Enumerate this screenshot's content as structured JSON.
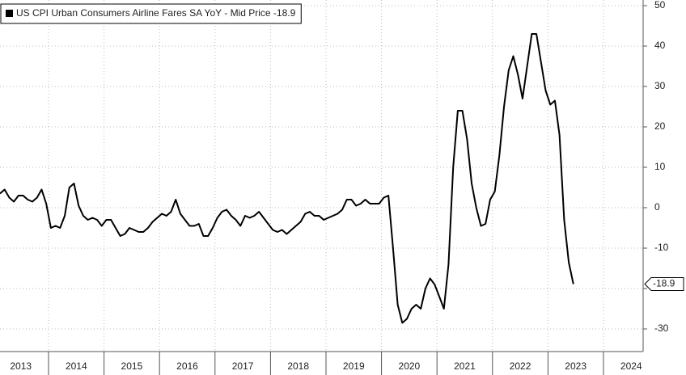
{
  "chart_data": {
    "type": "line",
    "series": [
      {
        "name": "US CPI Urban Consumers Airline Fares SA YoY - Mid Price -18.9",
        "color": "#000000",
        "x": [
          2013.125,
          2013.208,
          2013.292,
          2013.375,
          2013.458,
          2013.542,
          2013.625,
          2013.708,
          2013.792,
          2013.875,
          2013.958,
          2014.042,
          2014.125,
          2014.208,
          2014.292,
          2014.375,
          2014.458,
          2014.542,
          2014.625,
          2014.708,
          2014.792,
          2014.875,
          2014.958,
          2015.042,
          2015.125,
          2015.208,
          2015.292,
          2015.375,
          2015.458,
          2015.542,
          2015.625,
          2015.708,
          2015.792,
          2015.875,
          2015.958,
          2016.042,
          2016.125,
          2016.208,
          2016.292,
          2016.375,
          2016.458,
          2016.542,
          2016.625,
          2016.708,
          2016.792,
          2016.875,
          2016.958,
          2017.042,
          2017.125,
          2017.208,
          2017.292,
          2017.375,
          2017.458,
          2017.542,
          2017.625,
          2017.708,
          2017.792,
          2017.875,
          2017.958,
          2018.042,
          2018.125,
          2018.208,
          2018.292,
          2018.375,
          2018.458,
          2018.542,
          2018.625,
          2018.708,
          2018.792,
          2018.875,
          2018.958,
          2019.042,
          2019.125,
          2019.208,
          2019.292,
          2019.375,
          2019.458,
          2019.542,
          2019.625,
          2019.708,
          2019.792,
          2019.875,
          2019.958,
          2020.042,
          2020.125,
          2020.208,
          2020.292,
          2020.375,
          2020.458,
          2020.542,
          2020.625,
          2020.708,
          2020.792,
          2020.875,
          2020.958,
          2021.042,
          2021.125,
          2021.208,
          2021.292,
          2021.375,
          2021.458,
          2021.542,
          2021.625,
          2021.708,
          2021.792,
          2021.875,
          2021.958,
          2022.042,
          2022.125,
          2022.208,
          2022.292,
          2022.375,
          2022.458,
          2022.542,
          2022.625,
          2022.708,
          2022.792,
          2022.875,
          2022.958,
          2023.042,
          2023.125,
          2023.208,
          2023.292,
          2023.375,
          2023.458
        ],
        "values": [
          3.5,
          4.5,
          2.5,
          1.5,
          3,
          3,
          2,
          1.5,
          2.5,
          4.5,
          1,
          -5,
          -4.5,
          -5,
          -2,
          5,
          6,
          0.5,
          -2,
          -3,
          -2.5,
          -3,
          -4.5,
          -3,
          -3,
          -5,
          -7,
          -6.5,
          -5,
          -5.5,
          -6,
          -6,
          -5,
          -3.5,
          -2.5,
          -1.5,
          -2,
          -1,
          2,
          -1.5,
          -3,
          -4.5,
          -4.5,
          -4,
          -7,
          -7,
          -5,
          -2.5,
          -1,
          -0.5,
          -2,
          -3,
          -4.5,
          -2,
          -2.5,
          -2,
          -1,
          -2.5,
          -4,
          -5.5,
          -6,
          -5.5,
          -6.5,
          -5.5,
          -4.5,
          -3.5,
          -1.5,
          -1,
          -2,
          -2,
          -3,
          -2.5,
          -2,
          -1.5,
          -0.5,
          2,
          2,
          0.5,
          1,
          2,
          1,
          1,
          1,
          2.5,
          3,
          -10,
          -24,
          -28.5,
          -27.5,
          -25,
          -24,
          -25,
          -20,
          -17.5,
          -19,
          -22,
          -25,
          -14,
          10,
          24,
          24,
          17,
          6,
          0,
          -4.5,
          -4,
          2,
          4,
          13,
          25,
          34,
          37.5,
          33,
          27,
          35,
          43,
          43,
          36,
          29,
          25.5,
          26.5,
          18,
          -3,
          -13.5,
          -18.9
        ]
      }
    ],
    "last_value_label": "-18.9",
    "xlim": [
      2013.125,
      2024.715
    ],
    "xticks": [
      {
        "value": 2013.5,
        "label": "2013"
      },
      {
        "value": 2014.5,
        "label": "2014"
      },
      {
        "value": 2015.5,
        "label": "2015"
      },
      {
        "value": 2016.5,
        "label": "2016"
      },
      {
        "value": 2017.5,
        "label": "2017"
      },
      {
        "value": 2018.5,
        "label": "2018"
      },
      {
        "value": 2019.5,
        "label": "2019"
      },
      {
        "value": 2020.5,
        "label": "2020"
      },
      {
        "value": 2021.5,
        "label": "2021"
      },
      {
        "value": 2022.5,
        "label": "2022"
      },
      {
        "value": 2023.5,
        "label": "2023"
      },
      {
        "value": 2024.5,
        "label": "2024"
      }
    ],
    "ylim": [
      -35.6,
      51.4
    ],
    "yticks": [
      50,
      40,
      30,
      20,
      10,
      0,
      -10,
      -20,
      -30
    ],
    "grid": true,
    "legend": "top-left"
  }
}
